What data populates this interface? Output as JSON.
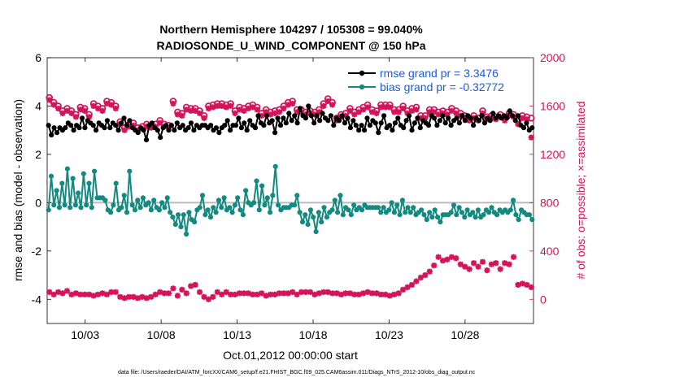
{
  "chart_data": {
    "type": "line",
    "title_line1": "Northern Hemisphere 104297 / 105308 = 99.040%",
    "title_line2": "RADIOSONDE_U_WIND_COMPONENT @ 150 hPa",
    "xlabel": "Oct.01,2012 00:00:00 start",
    "ylabel_left": "rmse and bias (model - observation)",
    "ylabel_right": "# of obs: o=possible; ×=assimilated",
    "ylim_left": [
      -5,
      6
    ],
    "ylim_right": [
      -200,
      2000
    ],
    "yticks_left": [
      "6",
      "4",
      "2",
      "0",
      "-2",
      "-4"
    ],
    "yticks_right": [
      "2000",
      "1600",
      "1200",
      "800",
      "400",
      "0"
    ],
    "xlim_days": [
      0.5,
      32.5
    ],
    "xticks": [
      "10/03",
      "10/08",
      "10/13",
      "10/18",
      "10/23",
      "10/28"
    ],
    "xtick_days": [
      3,
      8,
      13,
      18,
      23,
      28
    ],
    "colors": {
      "rmse": "#000000",
      "bias": "#138a80",
      "obs": "#d4145a",
      "zero_line": "#bbbbbb",
      "legend_text": "#1f5bd6"
    },
    "legend": [
      {
        "label": "rmse grand pr = 3.3476"
      },
      {
        "label": "bias grand pr = -0.32772"
      }
    ],
    "series": [
      {
        "name": "rmse",
        "values": [
          3.2,
          2.8,
          3.1,
          2.9,
          3.1,
          3.0,
          3.1,
          3.3,
          3.2,
          3.0,
          3.2,
          3.1,
          3.5,
          3.1,
          3.4,
          3.3,
          3.2,
          3.0,
          3.3,
          3.2,
          3.1,
          3.4,
          3.1,
          3.3,
          3.2,
          3.0,
          3.3,
          3.5,
          3.2,
          3.4,
          3.1,
          3.0,
          2.9,
          3.1,
          3.0,
          2.6,
          3.2,
          3.3,
          3.1,
          3.0,
          2.7,
          3.1,
          3.2,
          3.0,
          3.2,
          3.0,
          3.3,
          3.1,
          3.2,
          3.0,
          3.1,
          3.3,
          3.0,
          3.2,
          3.1,
          3.2,
          3.2,
          3.1,
          3.2,
          3.0,
          3.1,
          2.9,
          3.1,
          3.2,
          3.4,
          3.0,
          3.2,
          3.2,
          3.5,
          3.1,
          3.3,
          3.0,
          3.4,
          3.2,
          3.1,
          3.6,
          3.3,
          3.2,
          3.6,
          3.3,
          3.4,
          2.9,
          3.5,
          3.2,
          3.5,
          3.3,
          3.7,
          3.4,
          3.6,
          3.3,
          3.9,
          3.6,
          3.5,
          4.0,
          3.6,
          3.3,
          3.6,
          3.4,
          3.7,
          3.5,
          3.4,
          3.6,
          3.2,
          3.5,
          3.4,
          3.6,
          3.3,
          3.5,
          3.1,
          3.4,
          3.2,
          3.0,
          3.2,
          3.0,
          3.5,
          3.2,
          3.4,
          3.3,
          2.9,
          3.3,
          3.6,
          3.1,
          3.2,
          3.0,
          3.3,
          3.5,
          3.2,
          3.1,
          3.4,
          3.6,
          3.0,
          3.3,
          3.5,
          3.1,
          3.4,
          3.3,
          3.2,
          3.6,
          3.5,
          3.2,
          3.4,
          3.6,
          3.3,
          3.5,
          3.2,
          3.4,
          3.5,
          3.3,
          3.6,
          3.4,
          3.6,
          3.5,
          3.2,
          3.5,
          3.4,
          3.6,
          3.3,
          3.5,
          3.4,
          3.7,
          3.5,
          3.6,
          3.5,
          3.6,
          3.5,
          3.8,
          3.6,
          3.4,
          3.6,
          3.2,
          3.1,
          3.3,
          3.0,
          3.1
        ]
      },
      {
        "name": "bias",
        "values": [
          -0.3,
          1.1,
          -0.1,
          0.5,
          -0.2,
          0.8,
          -0.1,
          1.4,
          -0.2,
          1.0,
          -0.1,
          0.4,
          -0.2,
          1.2,
          -0.1,
          0.8,
          -0.2,
          1.3,
          0.2,
          0.2,
          0.2,
          0.1,
          -0.3,
          -0.4,
          -0.1,
          0.8,
          -0.3,
          -0.2,
          0.3,
          -0.4,
          1.3,
          -0.1,
          -0.3,
          0.1,
          -0.2,
          0.2,
          -0.1,
          0.0,
          -0.3,
          0.1,
          -0.2,
          -0.3,
          0.0,
          -0.2,
          0.2,
          -0.4,
          -0.6,
          -0.9,
          -0.5,
          -1.0,
          -0.5,
          -1.3,
          -0.4,
          -0.7,
          -0.8,
          -0.3,
          -0.2,
          0.3,
          -0.5,
          -0.3,
          -0.6,
          -0.2,
          -0.4,
          0.1,
          -0.2,
          0.2,
          -0.3,
          -0.2,
          -0.4,
          -0.1,
          0.2,
          -0.3,
          -0.5,
          0.5,
          0.0,
          -0.1,
          0.0,
          0.9,
          -0.3,
          0.7,
          -0.1,
          0.2,
          -0.4,
          0.3,
          1.5,
          -0.1,
          -0.3,
          -0.2,
          -0.2,
          -0.2,
          -0.1,
          -0.1,
          0.3,
          -0.4,
          -0.8,
          -0.5,
          -0.9,
          -0.3,
          -0.6,
          -1.2,
          -0.4,
          -0.8,
          -0.2,
          -0.6,
          -0.4,
          -0.3,
          0.1,
          -0.4,
          0.3,
          -0.5,
          -0.2,
          -0.3,
          -0.5,
          -0.1,
          -0.3,
          -0.2,
          -0.3,
          -0.1,
          -0.2,
          -0.2,
          -0.2,
          -0.2,
          -0.2,
          -0.4,
          -0.2,
          -0.4,
          -0.3,
          0.0,
          -0.4,
          -0.1,
          -0.5,
          0.1,
          -0.4,
          -0.2,
          -0.4,
          -0.2,
          -0.5,
          -0.4,
          -0.3,
          -0.5,
          -0.7,
          -0.4,
          -0.6,
          -0.3,
          -0.6,
          -0.8,
          -0.5,
          -0.5,
          -0.5,
          -0.4,
          -0.1,
          -0.5,
          -0.2,
          -0.4,
          -0.6,
          -0.3,
          -0.5,
          -0.4,
          -0.6,
          -0.3,
          -0.6,
          -0.5,
          -0.3,
          -0.4,
          -0.2,
          -0.4,
          -0.5,
          -0.3,
          -0.4,
          -0.3,
          -0.4,
          -0.3,
          0.1,
          -0.5,
          -0.7,
          -0.3,
          -0.4,
          -0.5,
          -0.5,
          -0.7
        ]
      },
      {
        "name": "obs possible",
        "values": [
          1670,
          1630,
          1600,
          1560,
          1580,
          1560,
          1530,
          1590,
          1580,
          1530,
          1620,
          1600,
          1580,
          1640,
          1630,
          1600,
          1470,
          1420,
          1450,
          1460,
          1420,
          1430,
          1450,
          1440,
          1450,
          1480,
          1450,
          1440,
          1640,
          1550,
          1540,
          1590,
          1580,
          1580,
          1560,
          1520,
          1600,
          1610,
          1620,
          1620,
          1610,
          1620,
          1560,
          1590,
          1580,
          1600,
          1610,
          1590,
          1540,
          1570,
          1550,
          1560,
          1570,
          1600,
          1630,
          1640,
          1570,
          1570,
          1550,
          1560,
          1550,
          1570,
          1620,
          1660,
          1630,
          1500,
          1530,
          1540,
          1580,
          1550,
          1570,
          1590,
          1610,
          1570,
          1560,
          1610,
          1610,
          1610,
          1570,
          1570,
          1600,
          1560,
          1580,
          1590,
          1520,
          1520,
          1570,
          1570,
          1550,
          1560,
          1550,
          1580,
          1560,
          1540,
          1520,
          1500,
          1520,
          1500,
          1560,
          1510,
          1520,
          1510,
          1530,
          1500,
          1540,
          1530,
          1480,
          1520,
          1510,
          1500
        ]
      },
      {
        "name": "obs assimilated",
        "values": [
          1650,
          1610,
          1580,
          1540,
          1560,
          1540,
          1510,
          1570,
          1560,
          1510,
          1600,
          1580,
          1560,
          1620,
          1610,
          1580,
          1450,
          1400,
          1430,
          1440,
          1400,
          1410,
          1430,
          1420,
          1430,
          1460,
          1430,
          1420,
          1620,
          1530,
          1520,
          1570,
          1560,
          1560,
          1540,
          1500,
          1580,
          1590,
          1600,
          1600,
          1590,
          1600,
          1540,
          1570,
          1560,
          1580,
          1590,
          1570,
          1520,
          1550,
          1530,
          1540,
          1550,
          1580,
          1610,
          1620,
          1550,
          1550,
          1530,
          1540,
          1530,
          1550,
          1600,
          1640,
          1610,
          1480,
          1510,
          1520,
          1560,
          1530,
          1550,
          1570,
          1590,
          1550,
          1540,
          1590,
          1590,
          1590,
          1550,
          1550,
          1580,
          1540,
          1560,
          1570,
          1500,
          1500,
          1550,
          1550,
          1530,
          1540,
          1530,
          1560,
          1540,
          1520,
          1500,
          1480,
          1500,
          1480,
          1540,
          1490,
          1500,
          1490,
          1510,
          1480,
          1520,
          1510,
          1450,
          1500,
          1490,
          1340
        ]
      },
      {
        "name": "obs lower",
        "values": [
          60,
          40,
          60,
          50,
          70,
          40,
          50,
          40,
          40,
          40,
          30,
          40,
          50,
          40,
          60,
          60,
          20,
          10,
          20,
          20,
          10,
          20,
          10,
          20,
          40,
          60,
          50,
          50,
          90,
          30,
          80,
          50,
          110,
          120,
          60,
          20,
          0,
          20,
          60,
          40,
          60,
          40,
          40,
          50,
          50,
          50,
          40,
          40,
          50,
          30,
          40,
          40,
          50,
          50,
          50,
          60,
          40,
          60,
          60,
          60,
          40,
          50,
          60,
          60,
          50,
          50,
          40,
          50,
          50,
          40,
          40,
          50,
          60,
          50,
          50,
          40,
          40,
          30,
          40,
          50,
          80,
          100,
          120,
          150,
          180,
          200,
          230,
          280,
          350,
          320,
          330,
          350,
          340,
          290,
          270,
          250,
          300,
          270,
          310,
          240,
          290,
          300,
          250,
          300,
          290,
          350,
          120,
          130,
          120,
          100
        ]
      }
    ]
  },
  "footer": "data file: /Users/raeder/DAI/ATM_forcXX/CAM6_setup/f.e21.FHIST_BGC.f09_025.CAM6assim.011/Diags_NTrS_2012-10/obs_diag_output.nc"
}
